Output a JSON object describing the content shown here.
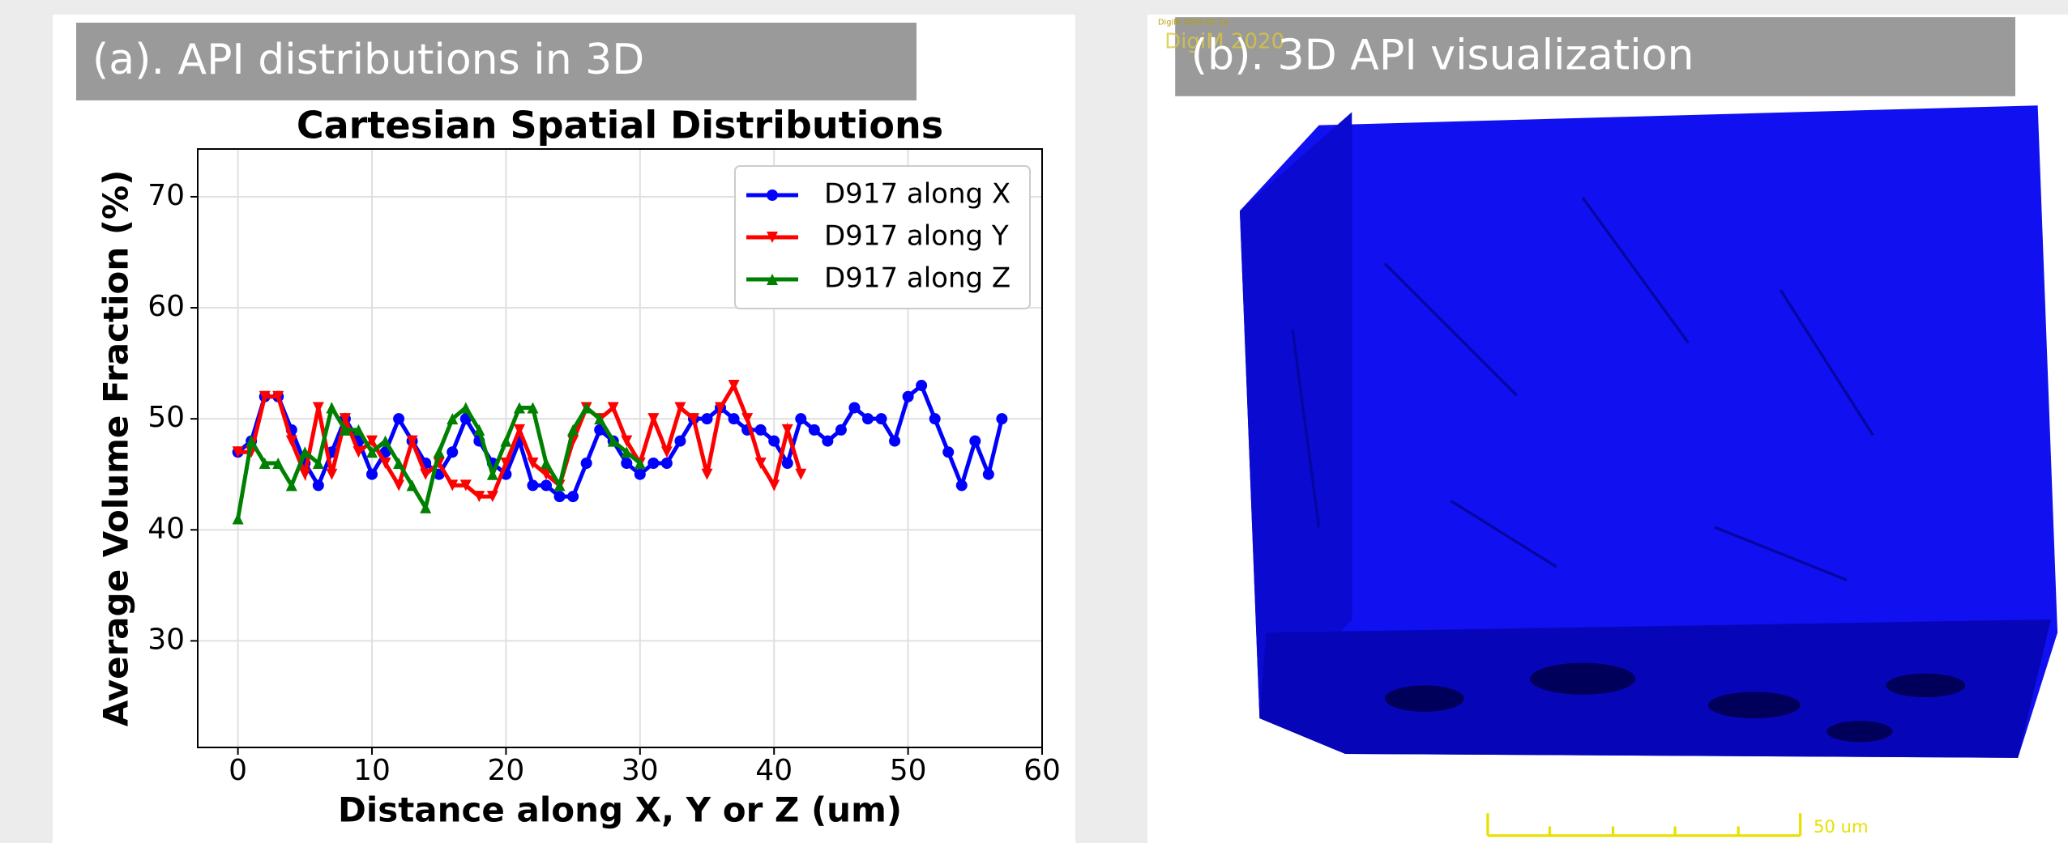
{
  "panel_a_title": "(a). API distributions in 3D",
  "panel_b_title": "(b). 3D API visualization",
  "watermark_small": "DigiM 2020.02.14",
  "watermark_large": "DigiM 2020",
  "scale_label": "50 um",
  "chart_data": {
    "type": "line",
    "title": "Cartesian Spatial Distributions",
    "x_label": "Distance along X, Y or Z (um)",
    "y_label": "Average Volume Fraction (%)",
    "xlim": [
      -3,
      60
    ],
    "xticks": [
      0,
      10,
      20,
      30,
      40,
      50,
      60
    ],
    "ylim": [
      20.4,
      74.3
    ],
    "yticks": [
      30,
      40,
      50,
      60,
      70
    ],
    "grid": true,
    "legend": "upper right",
    "series": [
      {
        "name": "D917 along X",
        "color": "#0000ff",
        "marker": "o",
        "x": [
          0,
          1,
          2,
          3,
          4,
          5,
          6,
          7,
          8,
          9,
          10,
          11,
          12,
          13,
          14,
          15,
          16,
          17,
          18,
          19,
          20,
          21,
          22,
          23,
          24,
          25,
          26,
          27,
          28,
          29,
          30,
          31,
          32,
          33,
          34,
          35,
          36,
          37,
          38,
          39,
          40,
          41,
          42,
          43,
          44,
          45,
          46,
          47,
          48,
          49,
          50,
          51,
          52,
          53,
          54,
          55,
          56,
          57
        ],
        "values": [
          47,
          48,
          52,
          52,
          49,
          46,
          44,
          47,
          50,
          48,
          45,
          47,
          50,
          48,
          46,
          45,
          47,
          50,
          48,
          46,
          45,
          48,
          44,
          44,
          43,
          43,
          46,
          49,
          48,
          46,
          45,
          46,
          46,
          48,
          50,
          50,
          51,
          50,
          49,
          49,
          48,
          46,
          50,
          49,
          48,
          49,
          51,
          50,
          50,
          48,
          52,
          53,
          50,
          47,
          44,
          48,
          45,
          50
        ]
      },
      {
        "name": "D917 along Y",
        "color": "#ff0000",
        "marker": "v",
        "x": [
          0,
          1,
          2,
          3,
          4,
          5,
          6,
          7,
          8,
          9,
          10,
          11,
          12,
          13,
          14,
          15,
          16,
          17,
          18,
          19,
          20,
          21,
          22,
          23,
          24,
          25,
          26,
          27,
          28,
          29,
          30,
          31,
          32,
          33,
          34,
          35,
          36,
          37,
          38,
          39,
          40,
          41,
          42
        ],
        "values": [
          47,
          47,
          52,
          52,
          48,
          45,
          51,
          45,
          50,
          47,
          48,
          46,
          44,
          48,
          45,
          46,
          44,
          44,
          43,
          43,
          46,
          49,
          46,
          45,
          44,
          48,
          51,
          50,
          51,
          48,
          46,
          50,
          47,
          51,
          50,
          45,
          51,
          53,
          50,
          46,
          44,
          49,
          45
        ]
      },
      {
        "name": "D917 along Z",
        "color": "#008000",
        "marker": "^",
        "x": [
          0,
          1,
          2,
          3,
          4,
          5,
          6,
          7,
          8,
          9,
          10,
          11,
          12,
          13,
          14,
          15,
          16,
          17,
          18,
          19,
          20,
          21,
          22,
          23,
          24,
          25,
          26,
          27,
          28,
          29,
          30
        ],
        "values": [
          41,
          48,
          46,
          46,
          44,
          47,
          46,
          51,
          49,
          49,
          47,
          48,
          46,
          44,
          42,
          47,
          50,
          51,
          49,
          45,
          48,
          51,
          51,
          46,
          44,
          49,
          51,
          50,
          48,
          47,
          46
        ]
      }
    ]
  }
}
